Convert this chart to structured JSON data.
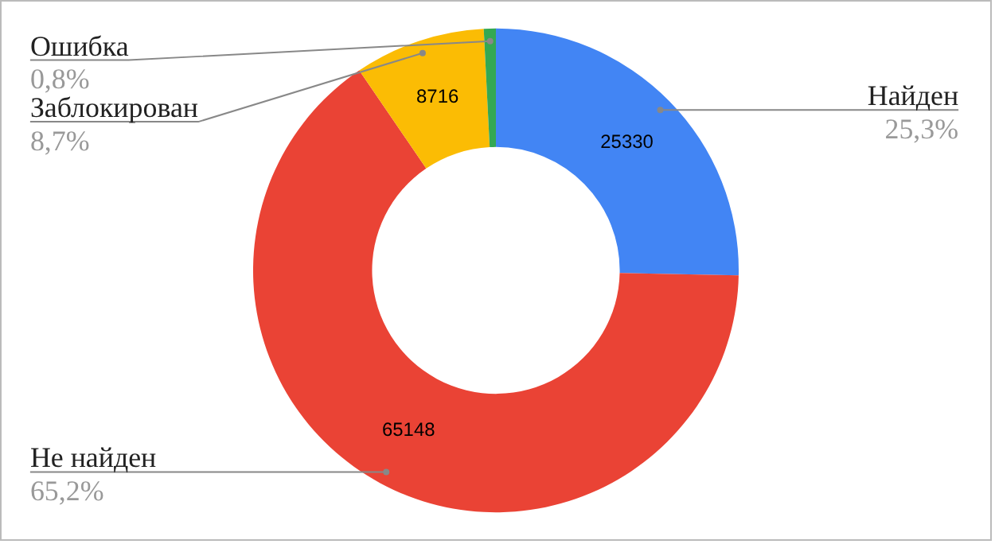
{
  "chart_data": {
    "type": "donut",
    "categories": [
      "Найден",
      "Не найден",
      "Заблокирован",
      "Ошибка"
    ],
    "values": [
      25330,
      65148,
      8716,
      800
    ],
    "colors": [
      "#4285f4",
      "#ea4335",
      "#fbbc04",
      "#34a853"
    ],
    "value_labels": [
      "25330",
      "65148",
      "8716",
      null
    ],
    "annotations": [
      "25,3%",
      "65,2%",
      "8,7%",
      "0,8%"
    ],
    "legend": false
  }
}
